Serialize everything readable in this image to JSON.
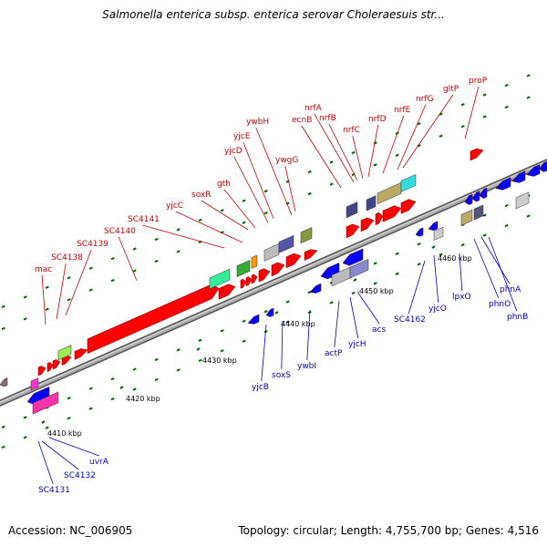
{
  "title": "Salmonella enterica subsp. enterica serovar Choleraesuis str...",
  "footer": {
    "accession": "Accession: NC_006905",
    "summary": "Topology: circular; Length: 4,755,700 bp; Genes: 4,516"
  },
  "colors": {
    "forward_label": "#cc0000",
    "reverse_label": "#0000cc",
    "forward_gene": "#ff0000",
    "reverse_gene": "#0000ff",
    "backbone": "#888888",
    "tick": "#006600"
  },
  "ticks": [
    "4410 kbp",
    "4420 kbp",
    "4430 kbp",
    "4440 kbp",
    "4450 kbp",
    "4460 kbp"
  ],
  "forward_labels": [
    "mac",
    "SC4138",
    "SC4139",
    "SC4140",
    "SC4141",
    "yjcC",
    "soxR",
    "gth",
    "yjcD",
    "yjcE",
    "ywbH",
    "ywgG",
    "ecnB",
    "nrfA",
    "nrfB",
    "nrfC",
    "nrfD",
    "nrfE",
    "nrfG",
    "gltP",
    "proP"
  ],
  "reverse_labels": [
    "SC4131",
    "SC4132",
    "uvrA",
    "yjcB",
    "soxS",
    "ywbI",
    "actP",
    "yjcH",
    "acs",
    "SC4162",
    "yjcO",
    "lpxO",
    "phnO",
    "phnA",
    "phnB"
  ]
}
